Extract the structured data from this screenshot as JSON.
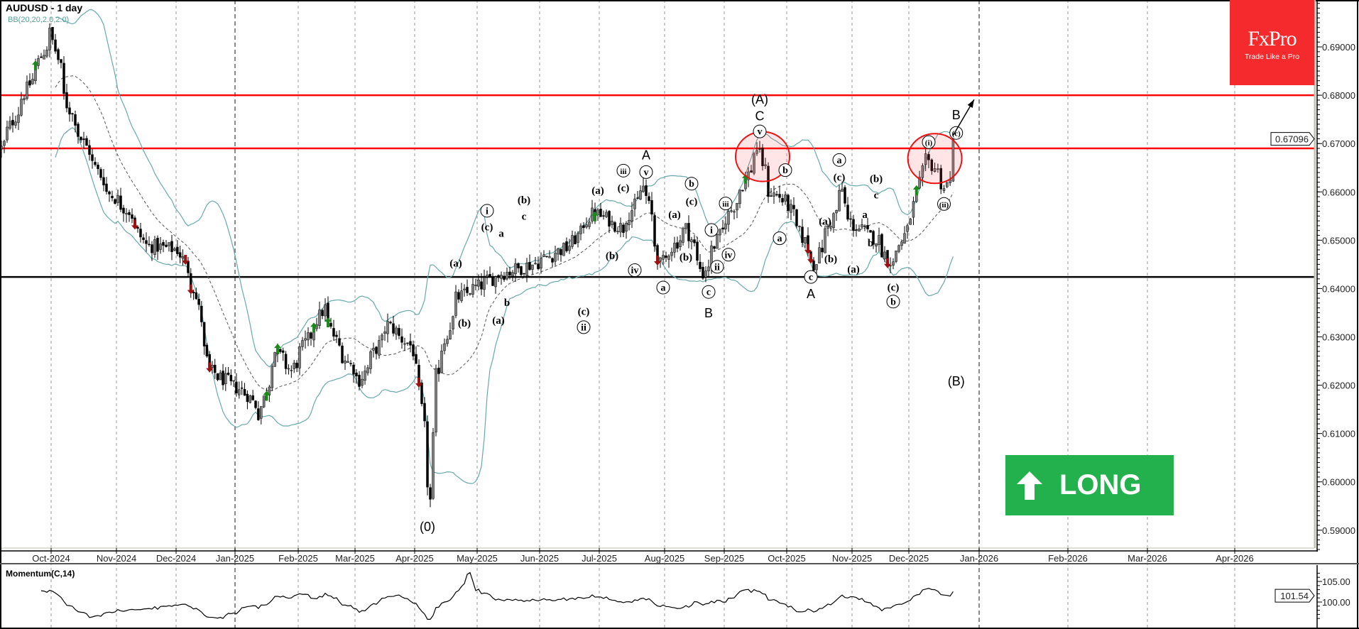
{
  "header": {
    "symbol_timeframe": "AUDUSD - 1 day",
    "indicator": "BB(20,20,2.0,2.0)"
  },
  "logo": {
    "brand": "FxPro",
    "tagline": "Trade Like a Pro",
    "color": "#f42a2c"
  },
  "signal_badge": {
    "label": "LONG",
    "icon": "arrow-up-icon",
    "color": "#23b14d"
  },
  "momentum": {
    "label": "Momentum(C,14)",
    "period": 14,
    "ticks": [
      {
        "value": 105,
        "label": "105.00"
      },
      {
        "value": 100,
        "label": "100.00"
      }
    ],
    "current": "101.54"
  },
  "chart_data": {
    "type": "candlestick",
    "symbol": "AUDUSD",
    "timeframe": "1 day",
    "ylim": [
      0.5863,
      0.6997
    ],
    "y_ticks": [
      "0.69000",
      "0.68000",
      "0.67000",
      "0.66000",
      "0.65000",
      "0.64000",
      "0.63000",
      "0.62000",
      "0.61000",
      "0.60000",
      "0.59000"
    ],
    "last_price": "0.67096",
    "x_ticks": [
      "Oct-2024",
      "Nov-2024",
      "Dec-2024",
      "Jan-2025",
      "Feb-2025",
      "Mar-2025",
      "Apr-2025",
      "May-2025",
      "Jun-2025",
      "Jul-2025",
      "Aug-2025",
      "Sep-2025",
      "Oct-2025",
      "Nov-2025",
      "Dec-2025",
      "Jan-2026",
      "Feb-2026",
      "Mar-2026",
      "Apr-2026"
    ],
    "grid": {
      "vertical": true,
      "horizontal": false
    },
    "colors": {
      "bull": "#808080",
      "bear": "#000000",
      "bands": "#6aa9a9",
      "levels_resistance": "#ff0000",
      "level_support": "#000000"
    },
    "bollinger": {
      "period": 20,
      "deviation": 2
    },
    "horizontal_lines": [
      {
        "price": 0.68,
        "color": "#ff0000"
      },
      {
        "price": 0.669,
        "color": "#ff0000"
      },
      {
        "price": 0.6424,
        "color": "#000000"
      }
    ],
    "price_path": [
      [
        "2024-09-05",
        0.669
      ],
      [
        "2024-09-24",
        0.687
      ],
      [
        "2024-09-30",
        0.693
      ],
      [
        "2024-10-08",
        0.678
      ],
      [
        "2024-10-15",
        0.671
      ],
      [
        "2024-10-28",
        0.66
      ],
      [
        "2024-11-07",
        0.656
      ],
      [
        "2024-11-15",
        0.649
      ],
      [
        "2024-12-02",
        0.648
      ],
      [
        "2024-12-10",
        0.64
      ],
      [
        "2024-12-18",
        0.623
      ],
      [
        "2025-01-07",
        0.618
      ],
      [
        "2025-01-13",
        0.614
      ],
      [
        "2025-01-21",
        0.627
      ],
      [
        "2025-01-29",
        0.623
      ],
      [
        "2025-02-14",
        0.636
      ],
      [
        "2025-02-21",
        0.628
      ],
      [
        "2025-03-04",
        0.621
      ],
      [
        "2025-03-18",
        0.6325
      ],
      [
        "2025-03-31",
        0.627
      ],
      [
        "2025-04-03",
        0.615
      ],
      [
        "2025-04-08",
        0.596
      ],
      [
        "2025-04-10",
        0.622
      ],
      [
        "2025-04-21",
        0.638
      ],
      [
        "2025-04-29",
        0.64
      ],
      [
        "2025-05-12",
        0.643
      ],
      [
        "2025-05-28",
        0.645
      ],
      [
        "2025-06-16",
        0.649
      ],
      [
        "2025-06-27",
        0.656
      ],
      [
        "2025-07-11",
        0.6525
      ],
      [
        "2025-07-22",
        0.661
      ],
      [
        "2025-07-30",
        0.645
      ],
      [
        "2025-08-12",
        0.6525
      ],
      [
        "2025-08-20",
        0.643
      ],
      [
        "2025-08-28",
        0.651
      ],
      [
        "2025-09-09",
        0.6615
      ],
      [
        "2025-09-16",
        0.669
      ],
      [
        "2025-09-22",
        0.66
      ],
      [
        "2025-09-30",
        0.658
      ],
      [
        "2025-10-14",
        0.645
      ],
      [
        "2025-10-28",
        0.6605
      ],
      [
        "2025-10-30",
        0.654
      ],
      [
        "2025-11-14",
        0.65
      ],
      [
        "2025-11-21",
        0.645
      ],
      [
        "2025-12-01",
        0.655
      ],
      [
        "2025-12-05",
        0.664
      ],
      [
        "2025-12-08",
        0.6665
      ],
      [
        "2025-12-11",
        0.665
      ],
      [
        "2025-12-16",
        0.661
      ],
      [
        "2025-12-18",
        0.662
      ],
      [
        "2025-12-19",
        0.67096
      ]
    ],
    "signals": [
      {
        "date": "2024-09-23",
        "type": "up"
      },
      {
        "date": "2025-01-16",
        "type": "up"
      },
      {
        "date": "2025-01-22",
        "type": "up"
      },
      {
        "date": "2025-02-10",
        "type": "up"
      },
      {
        "date": "2025-02-17",
        "type": "up"
      },
      {
        "date": "2025-06-27",
        "type": "up"
      },
      {
        "date": "2025-09-10",
        "type": "up"
      },
      {
        "date": "2025-12-03",
        "type": "up"
      },
      {
        "date": "2024-11-11",
        "type": "down"
      },
      {
        "date": "2024-12-05",
        "type": "down"
      },
      {
        "date": "2024-12-09",
        "type": "down"
      },
      {
        "date": "2024-12-18",
        "type": "down"
      },
      {
        "date": "2025-04-02",
        "type": "down"
      },
      {
        "date": "2025-07-29",
        "type": "down"
      },
      {
        "date": "2025-10-10",
        "type": "down"
      },
      {
        "date": "2025-10-13",
        "type": "down"
      },
      {
        "date": "2025-11-19",
        "type": "down"
      }
    ],
    "highlight_circles": [
      {
        "date": "2025-09-18",
        "price": 0.6673
      },
      {
        "date": "2025-12-11",
        "price": 0.6669
      }
    ],
    "projection_arrow": {
      "from": {
        "date": "2025-12-19",
        "price": 0.6717
      },
      "to": {
        "date": "2025-12-26",
        "price": 0.6791
      }
    },
    "wave_labels": [
      {
        "text": "(0)",
        "date": "2025-04-07",
        "price": 0.5907,
        "style": "big"
      },
      {
        "text": "(a)",
        "date": "2025-04-21",
        "price": 0.6454,
        "style": "plain"
      },
      {
        "text": "(b)",
        "date": "2025-04-24",
        "price": 0.633,
        "style": "plain"
      },
      {
        "text": "i",
        "date": "2025-05-06",
        "price": 0.6561,
        "style": "circled"
      },
      {
        "text": "(c)",
        "date": "2025-05-06",
        "price": 0.6529,
        "style": "plain"
      },
      {
        "text": "(a)",
        "date": "2025-05-12",
        "price": 0.6336,
        "style": "plain"
      },
      {
        "text": "a",
        "date": "2025-05-13",
        "price": 0.6516,
        "style": "plain"
      },
      {
        "text": "b",
        "date": "2025-05-15",
        "price": 0.6373,
        "style": "plain"
      },
      {
        "text": "(b)",
        "date": "2025-05-23",
        "price": 0.6585,
        "style": "plain"
      },
      {
        "text": "c",
        "date": "2025-05-23",
        "price": 0.6551,
        "style": "plain"
      },
      {
        "text": "(c)",
        "date": "2025-06-23",
        "price": 0.6354,
        "style": "plain"
      },
      {
        "text": "ii",
        "date": "2025-06-23",
        "price": 0.632,
        "style": "circled"
      },
      {
        "text": "(a)",
        "date": "2025-06-30",
        "price": 0.6605,
        "style": "plain"
      },
      {
        "text": "(b)",
        "date": "2025-07-07",
        "price": 0.647,
        "style": "plain"
      },
      {
        "text": "iii",
        "date": "2025-07-11",
        "price": 0.6644,
        "style": "circled"
      },
      {
        "text": "(c)",
        "date": "2025-07-11",
        "price": 0.661,
        "style": "plain"
      },
      {
        "text": "iv",
        "date": "2025-07-17",
        "price": 0.6438,
        "style": "circled"
      },
      {
        "text": "A",
        "date": "2025-07-23",
        "price": 0.6676,
        "style": "big"
      },
      {
        "text": "v",
        "date": "2025-07-23",
        "price": 0.6641,
        "style": "circled"
      },
      {
        "text": "a",
        "date": "2025-07-31",
        "price": 0.6402,
        "style": "circled"
      },
      {
        "text": "(a)",
        "date": "2025-08-06",
        "price": 0.6555,
        "style": "plain"
      },
      {
        "text": "(b)",
        "date": "2025-08-12",
        "price": 0.6467,
        "style": "plain"
      },
      {
        "text": "b",
        "date": "2025-08-14",
        "price": 0.6617,
        "style": "circled"
      },
      {
        "text": "(c)",
        "date": "2025-08-14",
        "price": 0.6582,
        "style": "plain"
      },
      {
        "text": "c",
        "date": "2025-08-22",
        "price": 0.6393,
        "style": "circled"
      },
      {
        "text": "B",
        "date": "2025-08-22",
        "price": 0.6349,
        "style": "big"
      },
      {
        "text": "i",
        "date": "2025-08-25",
        "price": 0.6521,
        "style": "circled"
      },
      {
        "text": "ii",
        "date": "2025-08-27",
        "price": 0.6445,
        "style": "circled"
      },
      {
        "text": "iii",
        "date": "2025-09-01",
        "price": 0.6576,
        "style": "circled"
      },
      {
        "text": "iv",
        "date": "2025-09-02",
        "price": 0.647,
        "style": "circled"
      },
      {
        "text": "(A)",
        "date": "2025-09-17",
        "price": 0.6791,
        "style": "big"
      },
      {
        "text": "C",
        "date": "2025-09-17",
        "price": 0.6757,
        "style": "big"
      },
      {
        "text": "v",
        "date": "2025-09-17",
        "price": 0.6725,
        "style": "circled"
      },
      {
        "text": "a",
        "date": "2025-09-26",
        "price": 0.6504,
        "style": "circled"
      },
      {
        "text": "b",
        "date": "2025-09-30",
        "price": 0.6645,
        "style": "circled"
      },
      {
        "text": "c",
        "date": "2025-10-13",
        "price": 0.6424,
        "style": "circled"
      },
      {
        "text": "A",
        "date": "2025-10-13",
        "price": 0.6389,
        "style": "big"
      },
      {
        "text": "(a)",
        "date": "2025-10-20",
        "price": 0.6541,
        "style": "plain"
      },
      {
        "text": "(b)",
        "date": "2025-10-22",
        "price": 0.6463,
        "style": "plain"
      },
      {
        "text": "a",
        "date": "2025-10-27",
        "price": 0.6666,
        "style": "circled"
      },
      {
        "text": "(c)",
        "date": "2025-10-27",
        "price": 0.6632,
        "style": "plain"
      },
      {
        "text": "(a)",
        "date": "2025-11-03",
        "price": 0.6442,
        "style": "plain"
      },
      {
        "text": "a",
        "date": "2025-11-07",
        "price": 0.6555,
        "style": "plain"
      },
      {
        "text": "b",
        "date": "2025-11-11",
        "price": 0.6496,
        "style": "plain"
      },
      {
        "text": "(b)",
        "date": "2025-11-13",
        "price": 0.6629,
        "style": "plain"
      },
      {
        "text": "c",
        "date": "2025-11-13",
        "price": 0.6595,
        "style": "plain"
      },
      {
        "text": "(c)",
        "date": "2025-11-21",
        "price": 0.6404,
        "style": "plain"
      },
      {
        "text": "b",
        "date": "2025-11-21",
        "price": 0.6373,
        "style": "circled"
      },
      {
        "text": "(i)",
        "date": "2025-12-09",
        "price": 0.6703,
        "style": "circled"
      },
      {
        "text": "(ii)",
        "date": "2025-12-16",
        "price": 0.6575,
        "style": "circled"
      },
      {
        "text": "(c)",
        "date": "2025-12-22",
        "price": 0.6722,
        "style": "circled"
      },
      {
        "text": "B",
        "date": "2025-12-22",
        "price": 0.6759,
        "style": "big"
      },
      {
        "text": "(B)",
        "date": "2025-12-22",
        "price": 0.6208,
        "style": "big"
      }
    ]
  }
}
